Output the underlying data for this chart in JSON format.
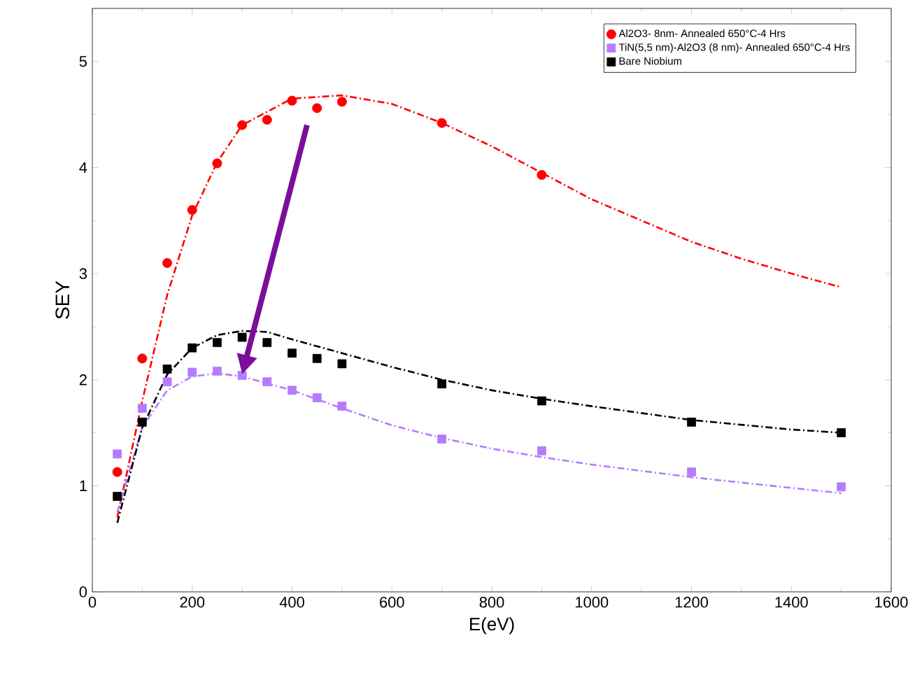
{
  "chart_data": {
    "type": "scatter",
    "xlabel": "E(eV)",
    "ylabel": "SEY",
    "xlim": [
      0,
      1600
    ],
    "ylim": [
      0,
      5.5
    ],
    "xticks": [
      0,
      200,
      400,
      600,
      800,
      1000,
      1200,
      1400,
      1600
    ],
    "yticks": [
      0,
      1,
      2,
      3,
      4,
      5
    ],
    "legend": "top right",
    "grid": false,
    "series": [
      {
        "name": "Al2O3- 8nm- Annealed 650°C-4 Hrs",
        "marker": "circle",
        "color": "#ff0000",
        "x": [
          50,
          100,
          150,
          200,
          250,
          300,
          350,
          400,
          450,
          500,
          700,
          900
        ],
        "values": [
          1.13,
          2.2,
          3.1,
          3.6,
          4.04,
          4.4,
          4.45,
          4.63,
          4.56,
          4.62,
          4.42,
          3.93
        ]
      },
      {
        "name": "TiN(5,5 nm)-Al2O3 (8 nm)- Annealed 650°C-4 Hrs",
        "marker": "square",
        "color": "#b57bff",
        "x": [
          50,
          100,
          150,
          200,
          250,
          300,
          350,
          400,
          450,
          500,
          700,
          900,
          1200,
          1500
        ],
        "values": [
          1.3,
          1.73,
          1.98,
          2.07,
          2.08,
          2.04,
          1.98,
          1.9,
          1.83,
          1.75,
          1.44,
          1.33,
          1.13,
          0.99
        ]
      },
      {
        "name": "Bare Niobium",
        "marker": "square",
        "color": "#000000",
        "x": [
          50,
          100,
          150,
          200,
          250,
          300,
          350,
          400,
          450,
          500,
          700,
          900,
          1200,
          1500
        ],
        "values": [
          0.9,
          1.6,
          2.1,
          2.3,
          2.35,
          2.4,
          2.35,
          2.25,
          2.2,
          2.15,
          1.96,
          1.8,
          1.6,
          1.5
        ]
      },
      {
        "type": "line",
        "marker": "none",
        "line_style": "dashdot",
        "color": "#ff0000",
        "x": [
          50,
          100,
          150,
          200,
          250,
          300,
          400,
          500,
          600,
          700,
          800,
          900,
          1000,
          1100,
          1200,
          1300,
          1400,
          1500
        ],
        "values": [
          0.7,
          1.8,
          2.8,
          3.55,
          4.05,
          4.4,
          4.65,
          4.68,
          4.6,
          4.42,
          4.2,
          3.95,
          3.7,
          3.5,
          3.3,
          3.14,
          3.0,
          2.87
        ]
      },
      {
        "type": "line",
        "marker": "none",
        "line_style": "dashdot",
        "color": "#b57bff",
        "x": [
          50,
          100,
          150,
          200,
          250,
          300,
          400,
          500,
          600,
          700,
          800,
          900,
          1000,
          1200,
          1400,
          1500
        ],
        "values": [
          0.75,
          1.55,
          1.9,
          2.03,
          2.06,
          2.03,
          1.9,
          1.73,
          1.57,
          1.45,
          1.35,
          1.27,
          1.2,
          1.08,
          0.98,
          0.93
        ]
      },
      {
        "type": "line",
        "marker": "none",
        "line_style": "dashdot",
        "color": "#000000",
        "x": [
          50,
          100,
          150,
          200,
          250,
          300,
          350,
          400,
          500,
          600,
          700,
          800,
          900,
          1000,
          1200,
          1400,
          1500
        ],
        "values": [
          0.65,
          1.55,
          2.05,
          2.3,
          2.42,
          2.46,
          2.45,
          2.38,
          2.25,
          2.12,
          2.0,
          1.9,
          1.82,
          1.75,
          1.62,
          1.53,
          1.5
        ]
      }
    ]
  }
}
